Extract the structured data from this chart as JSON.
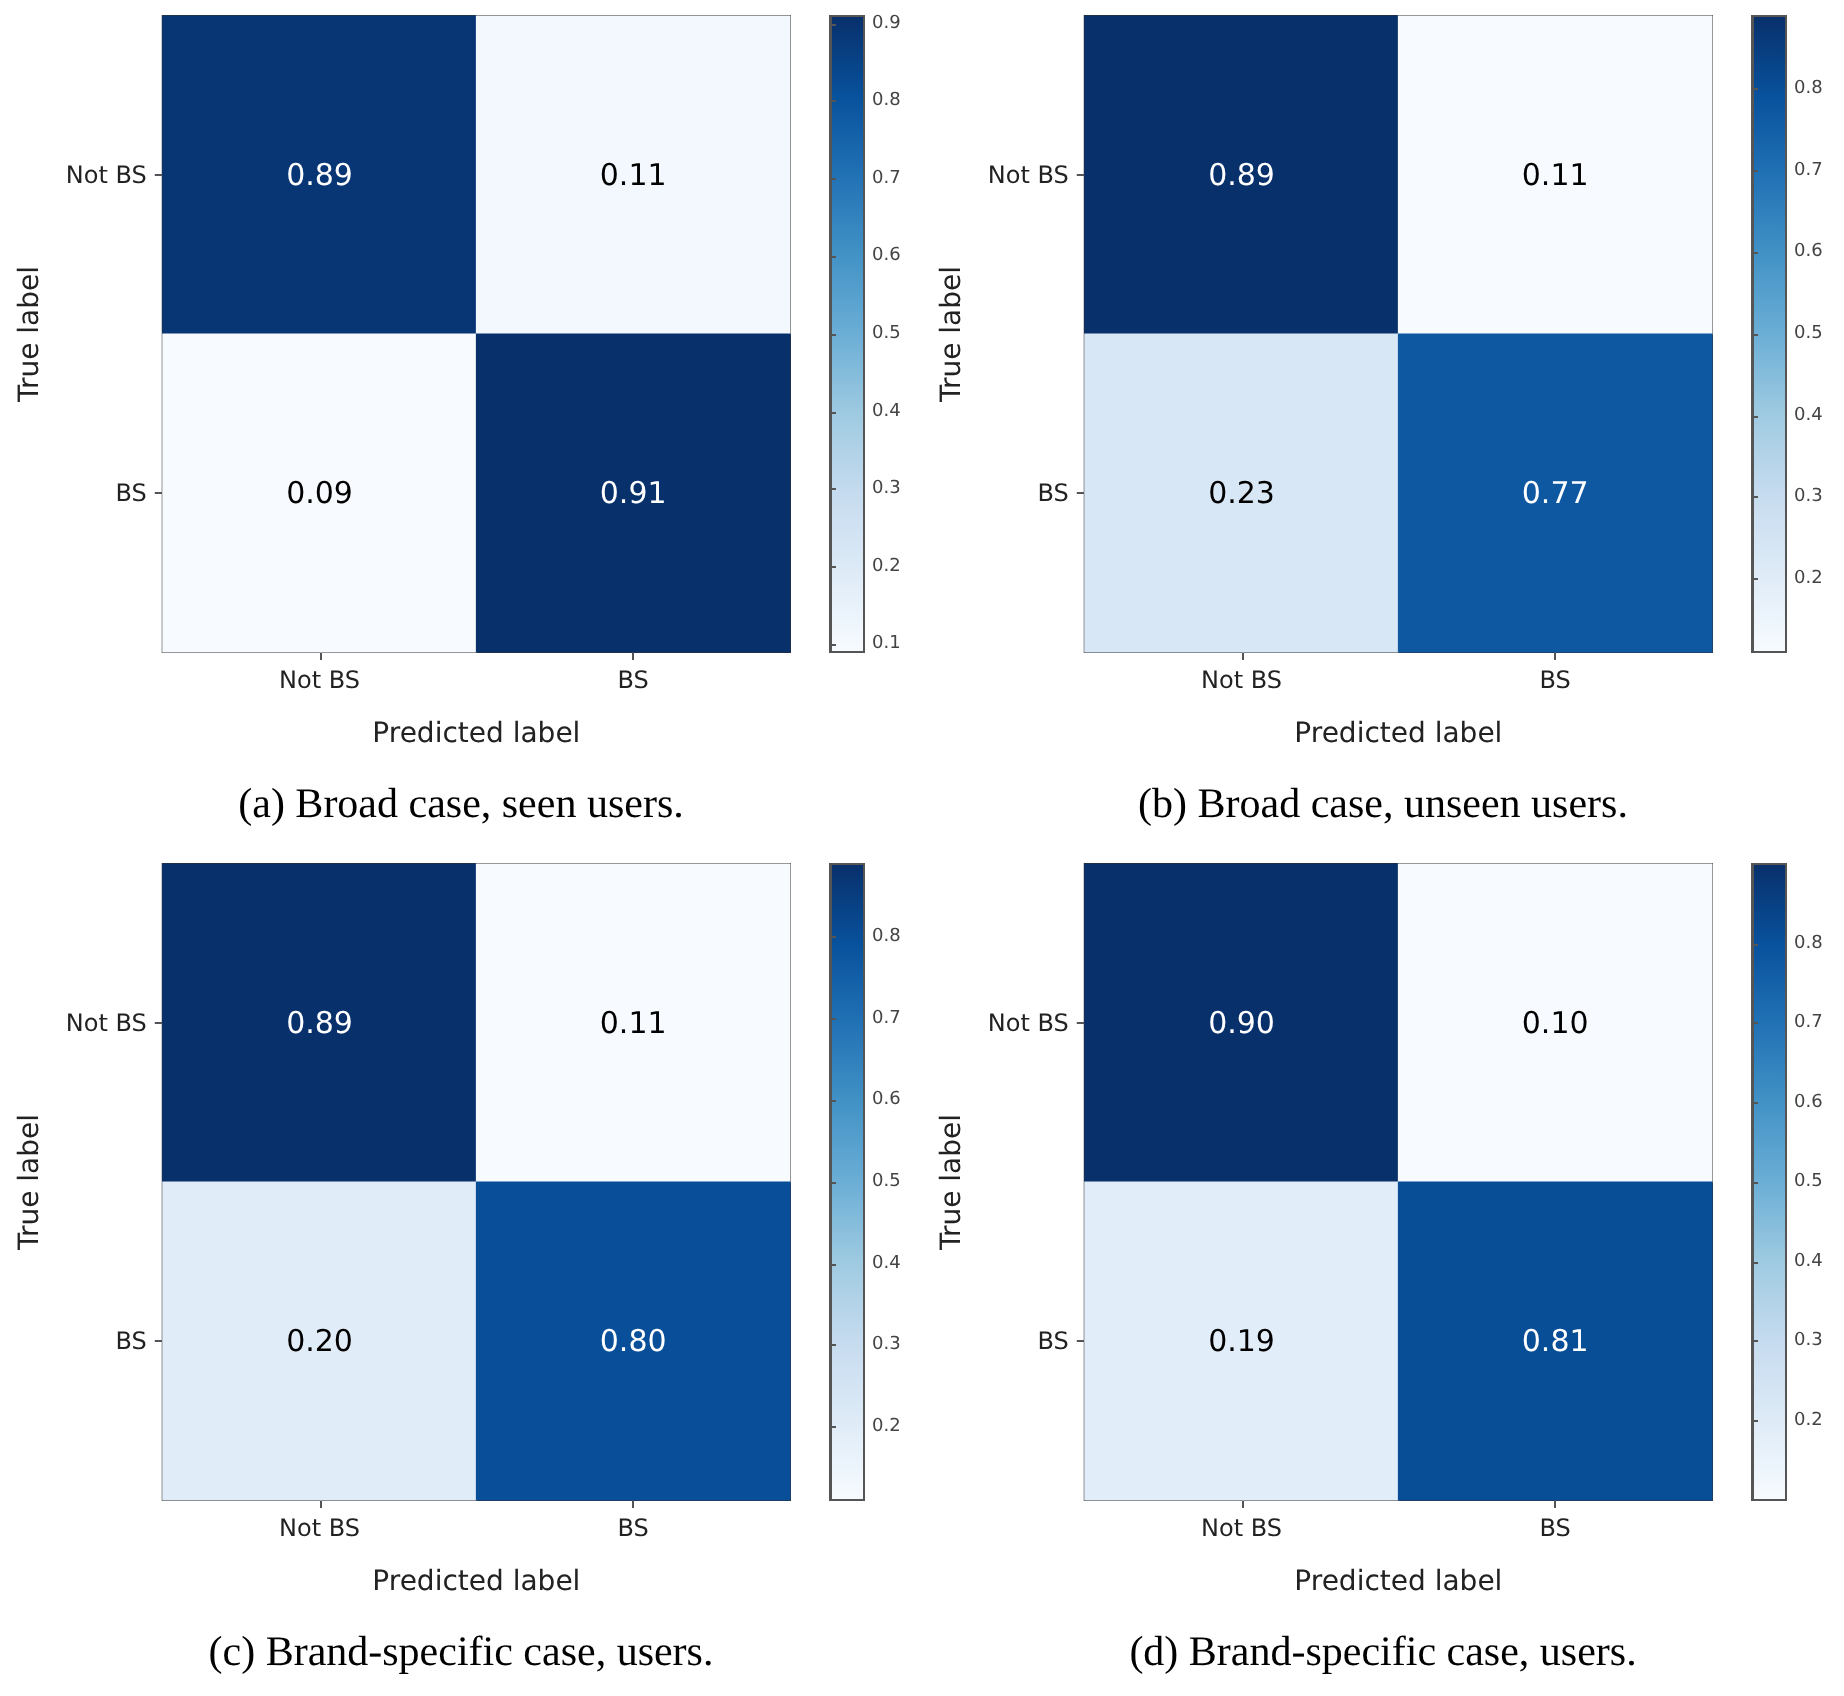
{
  "chart_data": [
    {
      "type": "heatmap",
      "title": "(a) Broad case, seen users.",
      "xlabel": "Predicted label",
      "ylabel": "True label",
      "categories": [
        "Not BS",
        "BS"
      ],
      "y_categories": [
        "Not BS",
        "BS"
      ],
      "cells": [
        [
          0.89,
          0.11
        ],
        [
          0.09,
          0.91
        ]
      ],
      "cell_labels": [
        [
          "0.89",
          "0.11"
        ],
        [
          "0.09",
          "0.91"
        ]
      ],
      "clim": [
        0.09,
        0.91
      ],
      "cticks": [
        0.1,
        0.2,
        0.3,
        0.4,
        0.5,
        0.6,
        0.7,
        0.8,
        0.9
      ]
    },
    {
      "type": "heatmap",
      "title": "(b) Broad case, unseen users.",
      "xlabel": "Predicted label",
      "ylabel": "True label",
      "categories": [
        "Not BS",
        "BS"
      ],
      "y_categories": [
        "Not BS",
        "BS"
      ],
      "cells": [
        [
          0.89,
          0.11
        ],
        [
          0.23,
          0.77
        ]
      ],
      "cell_labels": [
        [
          "0.89",
          "0.11"
        ],
        [
          "0.23",
          "0.77"
        ]
      ],
      "clim": [
        0.11,
        0.89
      ],
      "cticks": [
        0.2,
        0.3,
        0.4,
        0.5,
        0.6,
        0.7,
        0.8
      ]
    },
    {
      "type": "heatmap",
      "title": "(c) Brand-specific case, users.",
      "xlabel": "Predicted label",
      "ylabel": "True label",
      "categories": [
        "Not BS",
        "BS"
      ],
      "y_categories": [
        "Not BS",
        "BS"
      ],
      "cells": [
        [
          0.89,
          0.11
        ],
        [
          0.2,
          0.8
        ]
      ],
      "cell_labels": [
        [
          "0.89",
          "0.11"
        ],
        [
          "0.20",
          "0.80"
        ]
      ],
      "clim": [
        0.11,
        0.89
      ],
      "cticks": [
        0.2,
        0.3,
        0.4,
        0.5,
        0.6,
        0.7,
        0.8
      ]
    },
    {
      "type": "heatmap",
      "title": "(d) Brand-specific case, users.",
      "xlabel": "Predicted label",
      "ylabel": "True label",
      "categories": [
        "Not BS",
        "BS"
      ],
      "y_categories": [
        "Not BS",
        "BS"
      ],
      "cells": [
        [
          0.9,
          0.1
        ],
        [
          0.19,
          0.81
        ]
      ],
      "cell_labels": [
        [
          "0.90",
          "0.10"
        ],
        [
          "0.19",
          "0.81"
        ]
      ],
      "clim": [
        0.1,
        0.9
      ],
      "cticks": [
        0.2,
        0.3,
        0.4,
        0.5,
        0.6,
        0.7,
        0.8
      ]
    }
  ]
}
